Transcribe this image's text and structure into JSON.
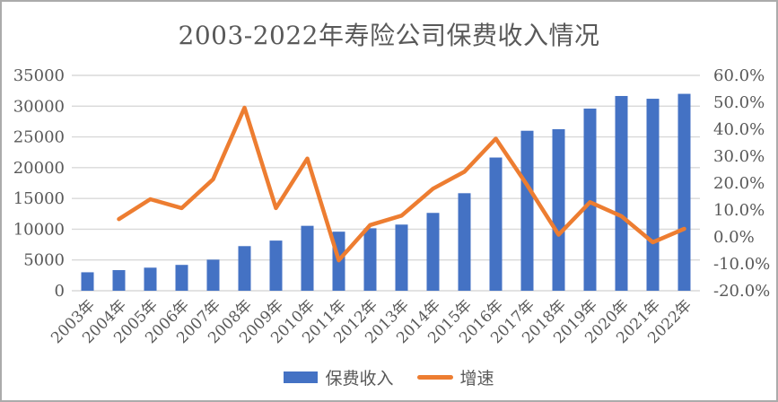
{
  "chart_data": {
    "type": "combo",
    "title": "2003-2022年寿险公司保费收入情况",
    "categories": [
      "2003年",
      "2004年",
      "2005年",
      "2006年",
      "2007年",
      "2008年",
      "2009年",
      "2010年",
      "2011年",
      "2012年",
      "2013年",
      "2014年",
      "2015年",
      "2016年",
      "2017年",
      "2018年",
      "2019年",
      "2020年",
      "2021年",
      "2022年"
    ],
    "series": [
      {
        "name": "保费收入",
        "type": "bar",
        "axis": "left",
        "color": "#4472C4",
        "values": [
          3000,
          3350,
          3750,
          4200,
          5050,
          7250,
          8150,
          10550,
          9600,
          10150,
          10750,
          12650,
          15850,
          21650,
          26000,
          26250,
          29600,
          31650,
          31200,
          32000
        ]
      },
      {
        "name": "增速",
        "type": "line",
        "axis": "right",
        "color": "#ED7D31",
        "values": [
          null,
          6.6,
          14.0,
          10.7,
          21.4,
          48.0,
          10.7,
          29.1,
          -8.7,
          4.4,
          7.9,
          17.9,
          24.2,
          36.5,
          19.2,
          0.8,
          12.9,
          7.7,
          -2.0,
          3.0
        ]
      }
    ],
    "left_axis": {
      "min": 0,
      "max": 35000,
      "step": 5000,
      "tick_labels_top_to_bottom": [
        "35000",
        "30000",
        "25000",
        "20000",
        "15000",
        "10000",
        "5000",
        "0"
      ]
    },
    "right_axis": {
      "min": -20,
      "max": 60,
      "step": 10,
      "tick_labels_top_to_bottom": [
        "60.0%",
        "50.0%",
        "40.0%",
        "30.0%",
        "20.0%",
        "10.0%",
        "0.0%",
        "-10.0%",
        "-20.0%"
      ]
    },
    "grid": "horizontal",
    "legend_position": "bottom",
    "colors": {
      "gridline": "#D9D9D9",
      "axis_line": "#D9D9D9",
      "tick_label": "#595959",
      "title": "#595959"
    }
  }
}
